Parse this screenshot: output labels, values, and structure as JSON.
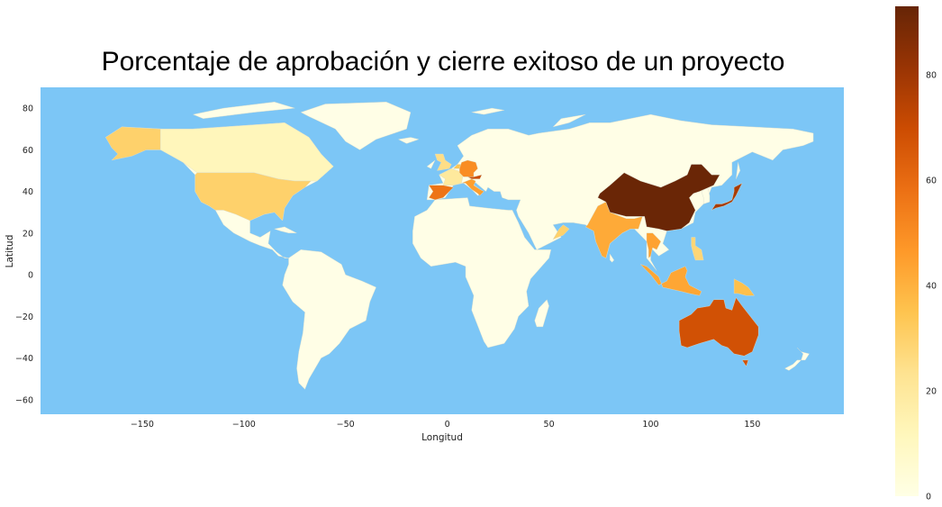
{
  "title": "Porcentaje de aprobación y cierre exitoso de un proyecto",
  "xlabel": "Longitud",
  "ylabel": "Latitud",
  "colors": {
    "ocean": "#7cc6f6",
    "land_default": "#fffee6",
    "border": "#d8dccd"
  },
  "colormap": "YlOrBr",
  "chart_data": {
    "type": "choropleth",
    "title": "Porcentaje de aprobación y cierre exitoso de un proyecto",
    "xlabel": "Longitud",
    "ylabel": "Latitud",
    "xlim": [
      -200,
      195
    ],
    "ylim": [
      -67,
      90
    ],
    "xticks": [
      -150,
      -100,
      -50,
      0,
      50,
      100,
      150
    ],
    "xtick_labels": [
      "−150",
      "−100",
      "−50",
      "0",
      "50",
      "100",
      "150"
    ],
    "yticks": [
      -60,
      -40,
      -20,
      0,
      20,
      40,
      60,
      80
    ],
    "ytick_labels": [
      "−60",
      "−40",
      "−20",
      "0",
      "20",
      "40",
      "60",
      "80"
    ],
    "colorbar": {
      "min": 0,
      "max": 93,
      "ticks": [
        0,
        20,
        40,
        60,
        80
      ],
      "tick_labels": [
        "0",
        "20",
        "40",
        "60",
        "80"
      ]
    },
    "regions": [
      {
        "name": "China",
        "value": 92
      },
      {
        "name": "Japan",
        "value": 78
      },
      {
        "name": "Australia",
        "value": 68
      },
      {
        "name": "Spain",
        "value": 57
      },
      {
        "name": "Germany",
        "value": 50
      },
      {
        "name": "Austria",
        "value": 70
      },
      {
        "name": "Italy",
        "value": 45
      },
      {
        "name": "India",
        "value": 42
      },
      {
        "name": "Thailand",
        "value": 44
      },
      {
        "name": "Indonesia",
        "value": 43
      },
      {
        "name": "Papua New Guinea",
        "value": 36
      },
      {
        "name": "United States",
        "value": 30
      },
      {
        "name": "Alaska",
        "value": 30
      },
      {
        "name": "Philippines",
        "value": 28
      },
      {
        "name": "Canada",
        "value": 12
      },
      {
        "name": "United Kingdom",
        "value": 25
      },
      {
        "name": "France",
        "value": 20
      },
      {
        "name": "Netherlands",
        "value": 34
      },
      {
        "name": "Oman",
        "value": 30
      }
    ]
  }
}
